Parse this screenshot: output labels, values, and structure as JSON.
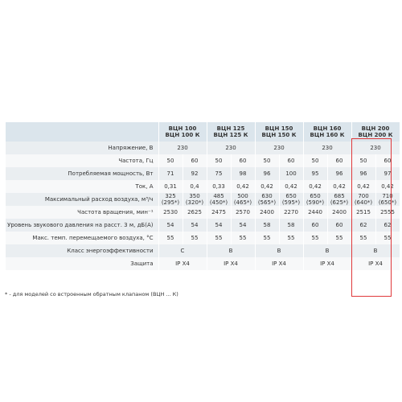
{
  "table": {
    "header": [
      "ВЦН 100\nВЦН 100 К",
      "ВЦН 125\nВЦН 125 К",
      "ВЦН 150\nВЦН 150 К",
      "ВЦН 160\nВЦН 160 К",
      "ВЦН 200\nВЦН 200 К"
    ],
    "rows": [
      {
        "label": "Напряжение, В",
        "cells": [
          "230",
          "230",
          "230",
          "230",
          "230"
        ]
      },
      {
        "label": "Частота, Гц",
        "cells": [
          "50",
          "60",
          "50",
          "60",
          "50",
          "60",
          "50",
          "60",
          "50",
          "60"
        ]
      },
      {
        "label": "Потребляемая мощность, Вт",
        "cells": [
          "71",
          "92",
          "75",
          "98",
          "96",
          "100",
          "95",
          "96",
          "96",
          "97"
        ]
      },
      {
        "label": "Ток, А",
        "cells": [
          "0,31",
          "0,4",
          "0,33",
          "0,42",
          "0,42",
          "0,42",
          "0,42",
          "0,42",
          "0,42",
          "0,42"
        ]
      },
      {
        "label": "Максимальный расход воздуха, м³/ч",
        "cells": [
          "325\n(295*)",
          "350\n(320*)",
          "485\n(450*)",
          "500\n(465*)",
          "630\n(565*)",
          "650\n(595*)",
          "650\n(590*)",
          "685\n(625*)",
          "700\n(640*)",
          "710\n(650*)"
        ]
      },
      {
        "label": "Частота вращения, мин⁻¹",
        "cells": [
          "2530",
          "2625",
          "2475",
          "2570",
          "2400",
          "2270",
          "2440",
          "2400",
          "2515",
          "2555"
        ]
      },
      {
        "label": "Уровень звукового давления на расст. 3 м, дБ(А)",
        "cells": [
          "54",
          "54",
          "54",
          "54",
          "58",
          "58",
          "60",
          "60",
          "62",
          "62"
        ]
      },
      {
        "label": "Макс. темп. перемещаемого воздуха, °С",
        "cells": [
          "55",
          "55",
          "55",
          "55",
          "55",
          "55",
          "55",
          "55",
          "55",
          "55"
        ]
      },
      {
        "label": "Класс энергоэффективности",
        "cells": [
          "C",
          "B",
          "B",
          "B",
          "B"
        ]
      },
      {
        "label": "Защита",
        "cells": [
          "IP X4",
          "IP X4",
          "IP X4",
          "IP X4",
          "IP X4"
        ]
      }
    ],
    "footnote": "* - для моделей со встроенным обратным клапаном (ВЦН ... К)"
  }
}
